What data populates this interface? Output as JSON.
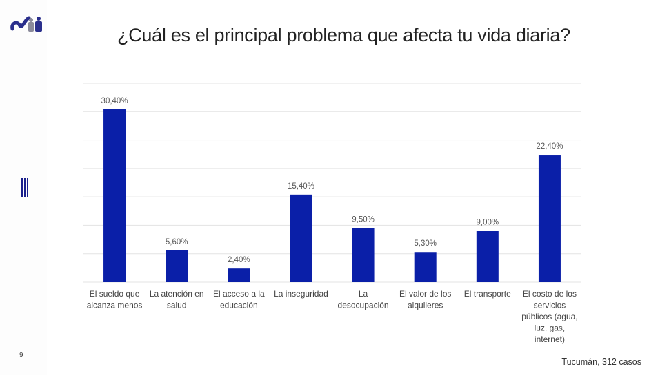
{
  "title": "¿Cuál es el principal problema que afecta tu vida diaria?",
  "page_number": "9",
  "footer": "Tucumán, 312 casos",
  "colors": {
    "bar": "#0a1fa8",
    "grid": "#e3e3e3",
    "accent": "#1a1f8c"
  },
  "icons": {
    "logo": "cnn-people-logo",
    "side": "vertical-bars-icon"
  },
  "chart_data": {
    "type": "bar",
    "title": "",
    "xlabel": "",
    "ylabel": "",
    "ylim": [
      0,
      35
    ],
    "grid": true,
    "legend": "none",
    "categories": [
      [
        "El sueldo que",
        "alcanza menos"
      ],
      [
        "La atención en",
        "salud"
      ],
      [
        "El acceso a la",
        "educación"
      ],
      [
        "La inseguridad"
      ],
      [
        "La",
        "desocupación"
      ],
      [
        "El valor de los",
        "alquileres"
      ],
      [
        "El transporte"
      ],
      [
        "El costo de los",
        "servicios",
        "públicos (agua,",
        "luz, gas,",
        "internet)"
      ]
    ],
    "values": [
      30.4,
      5.6,
      2.4,
      15.4,
      9.5,
      5.3,
      9.0,
      22.4
    ],
    "data_labels": [
      "30,40%",
      "5,60%",
      "2,40%",
      "15,40%",
      "9,50%",
      "5,30%",
      "9,00%",
      "22,40%"
    ]
  }
}
